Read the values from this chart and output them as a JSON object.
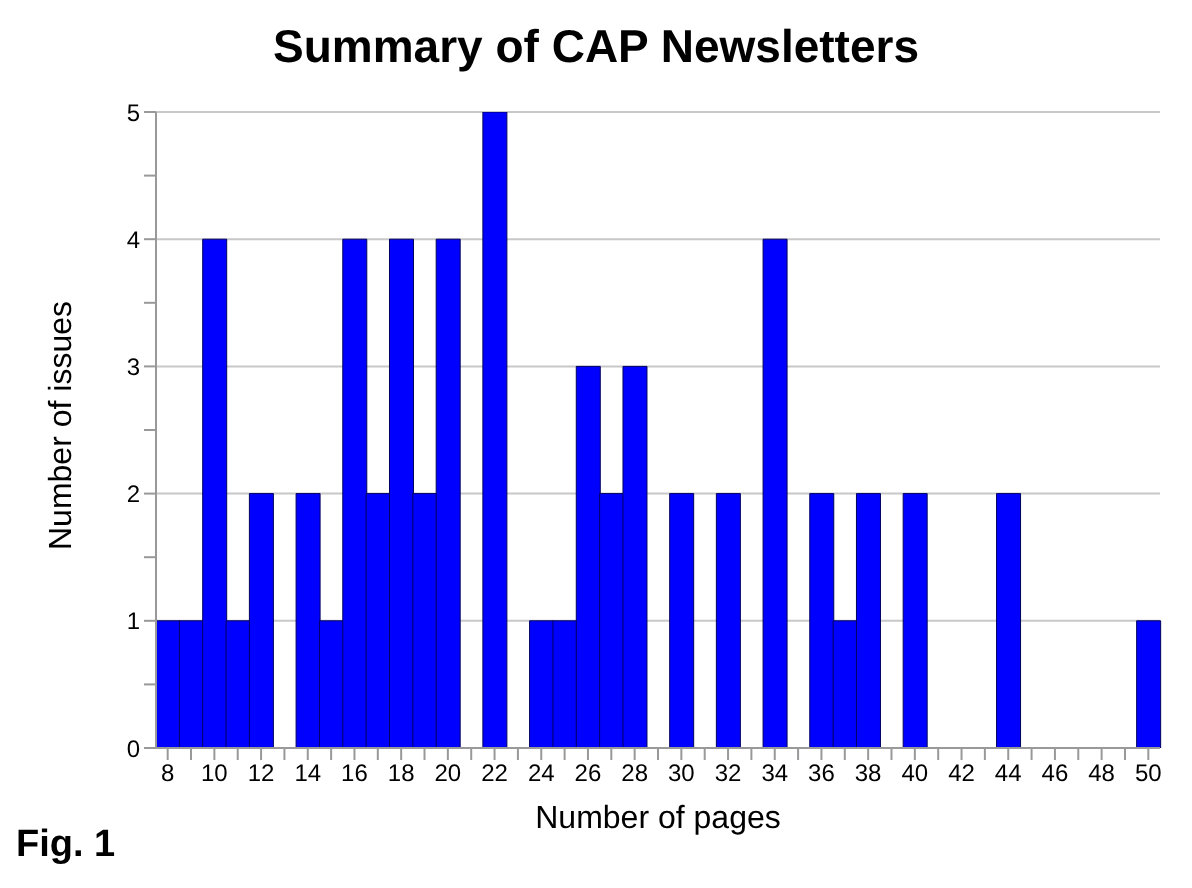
{
  "chart_data": {
    "type": "bar",
    "title": "Summary of CAP Newsletters",
    "xlabel": "Number of pages",
    "ylabel": "Number of issues",
    "categories": [
      "8",
      null,
      "10",
      null,
      "12",
      null,
      "14",
      null,
      "16",
      null,
      "18",
      null,
      "20",
      null,
      "22",
      null,
      "24",
      null,
      "26",
      null,
      "28",
      null,
      "30",
      null,
      "32",
      null,
      "34",
      null,
      "36",
      null,
      "38",
      null,
      "40",
      null,
      "42",
      null,
      "44",
      null,
      "46",
      null,
      "48",
      null,
      "50"
    ],
    "values": [
      1,
      1,
      4,
      1,
      2,
      0,
      2,
      1,
      4,
      2,
      4,
      2,
      4,
      0,
      5,
      0,
      1,
      1,
      3,
      2,
      3,
      0,
      2,
      0,
      2,
      0,
      4,
      0,
      2,
      1,
      2,
      0,
      2,
      0,
      0,
      0,
      2,
      0,
      0,
      0,
      0,
      0,
      1
    ],
    "color": "#0000ff",
    "ylim": [
      0,
      5
    ],
    "yticks": [
      0,
      {
        "value": 0.5,
        "label": null
      },
      1,
      {
        "value": 1.5,
        "label": null
      },
      2,
      {
        "value": 2.5,
        "label": null
      },
      3,
      {
        "value": 3.5,
        "label": null
      },
      4,
      {
        "value": 4.5,
        "label": null
      },
      5
    ],
    "grid": "y",
    "annotations": [
      "Fig. 1"
    ]
  }
}
